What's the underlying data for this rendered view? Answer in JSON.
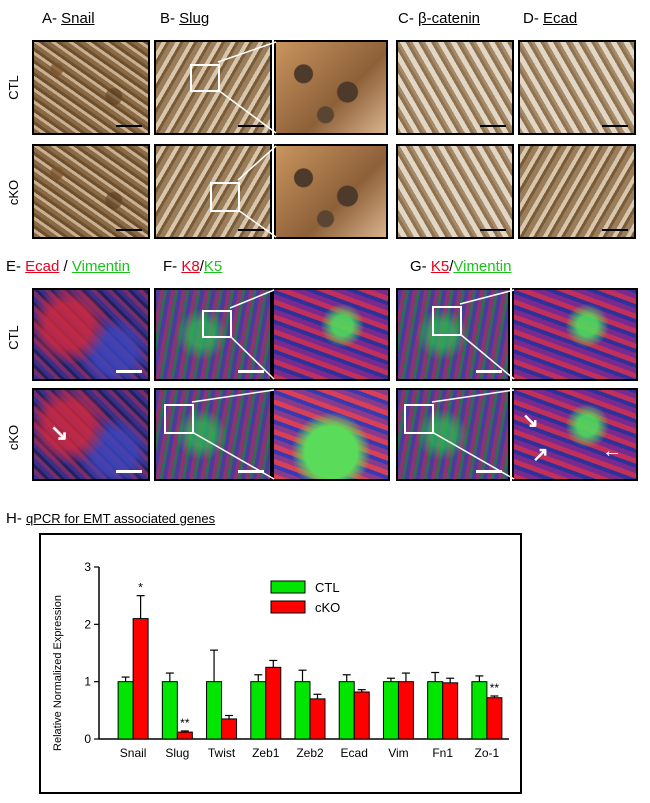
{
  "panels": {
    "A": {
      "prefix": "A-",
      "title": "Snail"
    },
    "B": {
      "prefix": "B-",
      "title": "Slug"
    },
    "C": {
      "prefix": "C-",
      "title": "β-catenin"
    },
    "D": {
      "prefix": "D-",
      "title": "Ecad"
    },
    "E": {
      "prefix": "E-",
      "title_red": "Ecad",
      "sep": " / ",
      "title_green": "Vimentin"
    },
    "F": {
      "prefix": "F-",
      "title_red": "K8",
      "sep": "/",
      "title_green": "K5"
    },
    "G": {
      "prefix": "G-",
      "title_red": "K5",
      "sep": "/",
      "title_green": "Vimentin"
    },
    "H": {
      "prefix": "H-",
      "title": "qPCR for EMT associated genes"
    }
  },
  "row_labels": {
    "ctl": "CTL",
    "cko": "cKO"
  },
  "colors": {
    "red_label": "#e8001c",
    "green_label": "#18c418",
    "ctl_bar": "#00e600",
    "cko_bar": "#ff0000"
  },
  "chart_data": {
    "type": "bar",
    "categories": [
      "Snail",
      "Slug",
      "Twist",
      "Zeb1",
      "Zeb2",
      "Ecad",
      "Vim",
      "Fn1",
      "Zo-1"
    ],
    "series": [
      {
        "name": "CTL",
        "values": [
          1.0,
          1.0,
          1.0,
          1.0,
          1.0,
          1.0,
          1.0,
          1.0,
          1.0
        ],
        "errors": [
          0.08,
          0.15,
          0.55,
          0.12,
          0.2,
          0.12,
          0.06,
          0.16,
          0.1
        ]
      },
      {
        "name": "cKO",
        "values": [
          2.1,
          0.12,
          0.35,
          1.25,
          0.7,
          0.82,
          1.0,
          0.98,
          0.72
        ],
        "errors": [
          0.4,
          0.02,
          0.06,
          0.12,
          0.08,
          0.04,
          0.15,
          0.08,
          0.03
        ]
      }
    ],
    "significance": [
      "*",
      "**",
      "",
      "",
      "",
      "",
      "",
      "",
      "**"
    ],
    "ylabel": "Relative Normalized Expression",
    "ylim": [
      0,
      3
    ],
    "yticks": [
      "0",
      "1",
      "2",
      "3"
    ],
    "legend_position": "top-right",
    "grid": false
  }
}
